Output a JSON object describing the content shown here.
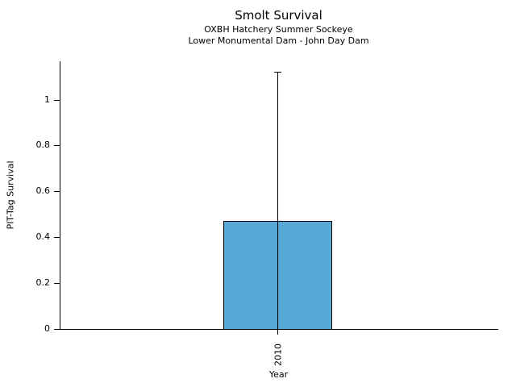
{
  "chart_data": {
    "type": "bar",
    "title": "Smolt Survival",
    "subtitles": [
      "OXBH Hatchery Summer Sockeye",
      "Lower Monumental Dam - John Day Dam"
    ],
    "categories": [
      "2010"
    ],
    "values": [
      0.47
    ],
    "error_bars": [
      {
        "lower": 0,
        "upper": 1.12
      }
    ],
    "xlabel": "Year",
    "ylabel": "PIT-Tag Survival",
    "ylim": [
      0,
      1.17
    ],
    "yticks": [
      0,
      0.2,
      0.4,
      0.6,
      0.8,
      1
    ],
    "ytick_labels": [
      "0",
      "0.2",
      "0.4",
      "0.6",
      "0.8",
      "1"
    ],
    "grid": false,
    "legend": null,
    "bar_color": "#59A9D6",
    "bar_edge_color": "#000000",
    "axis_color": "#000000"
  }
}
